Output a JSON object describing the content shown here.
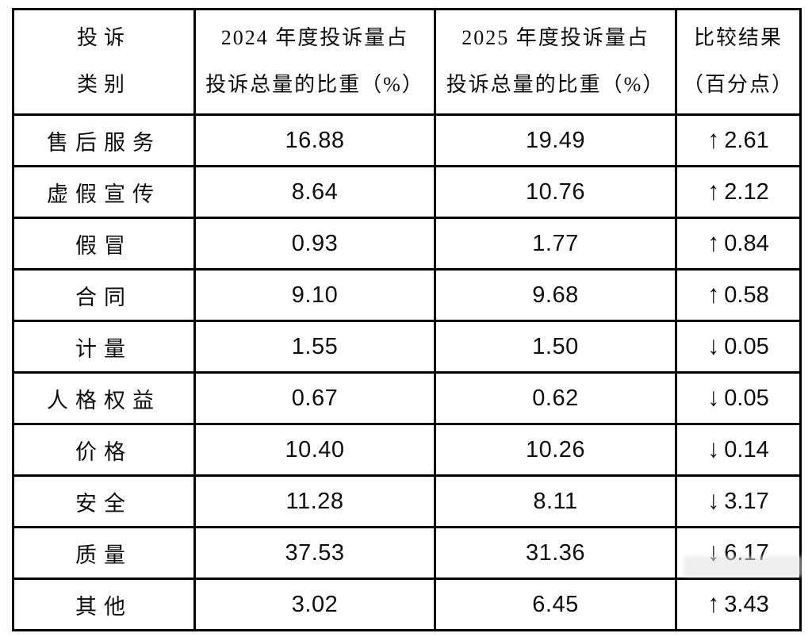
{
  "page": {
    "background": "#ffffff",
    "border_color": "#000000",
    "text_color": "#0d0d0d"
  },
  "table": {
    "header": {
      "category": [
        "投诉",
        "类别"
      ],
      "col2024": [
        "2024 年度投诉量占",
        "投诉总量的比重（%）"
      ],
      "col2025": [
        "2025 年度投诉量占",
        "投诉总量的比重（%）"
      ],
      "comparison": [
        "比较结果",
        "（百分点）"
      ]
    },
    "rows": [
      {
        "category": "售后服务",
        "y2024": "16.88",
        "y2025": "19.49",
        "arrow": "↑",
        "arrow_name": "up-arrow-icon",
        "delta": "2.61"
      },
      {
        "category": "虚假宣传",
        "y2024": "8.64",
        "y2025": "10.76",
        "arrow": "↑",
        "arrow_name": "up-arrow-icon",
        "delta": "2.12"
      },
      {
        "category": "假冒",
        "y2024": "0.93",
        "y2025": "1.77",
        "arrow": "↑",
        "arrow_name": "up-arrow-icon",
        "delta": "0.84"
      },
      {
        "category": "合同",
        "y2024": "9.10",
        "y2025": "9.68",
        "arrow": "↑",
        "arrow_name": "up-arrow-icon",
        "delta": "0.58"
      },
      {
        "category": "计量",
        "y2024": "1.55",
        "y2025": "1.50",
        "arrow": "↓",
        "arrow_name": "down-arrow-icon",
        "delta": "0.05"
      },
      {
        "category": "人格权益",
        "y2024": "0.67",
        "y2025": "0.62",
        "arrow": "↓",
        "arrow_name": "down-arrow-icon",
        "delta": "0.05"
      },
      {
        "category": "价格",
        "y2024": "10.40",
        "y2025": "10.26",
        "arrow": "↓",
        "arrow_name": "down-arrow-icon",
        "delta": "0.14"
      },
      {
        "category": "安全",
        "y2024": "11.28",
        "y2025": "8.11",
        "arrow": "↓",
        "arrow_name": "down-arrow-icon",
        "delta": "3.17"
      },
      {
        "category": "质量",
        "y2024": "37.53",
        "y2025": "31.36",
        "arrow": "↓",
        "arrow_name": "down-arrow-icon",
        "delta": "6.17"
      },
      {
        "category": "其他",
        "y2024": "3.02",
        "y2025": "6.45",
        "arrow": "↑",
        "arrow_name": "up-arrow-icon",
        "delta": "3.43"
      }
    ]
  },
  "chart_data": {
    "type": "table",
    "title": "",
    "columns": [
      "投诉类别",
      "2024年度投诉量占投诉总量的比重（%）",
      "2025年度投诉量占投诉总量的比重（%）",
      "比较结果（百分点）"
    ],
    "rows": [
      [
        "售后服务",
        16.88,
        19.49,
        "↑2.61"
      ],
      [
        "虚假宣传",
        8.64,
        10.76,
        "↑2.12"
      ],
      [
        "假冒",
        0.93,
        1.77,
        "↑0.84"
      ],
      [
        "合同",
        9.1,
        9.68,
        "↑0.58"
      ],
      [
        "计量",
        1.55,
        1.5,
        "↓0.05"
      ],
      [
        "人格权益",
        0.67,
        0.62,
        "↓0.05"
      ],
      [
        "价格",
        10.4,
        10.26,
        "↓0.14"
      ],
      [
        "安全",
        11.28,
        8.11,
        "↓3.17"
      ],
      [
        "质量",
        37.53,
        31.36,
        "↓6.17"
      ],
      [
        "其他",
        3.02,
        6.45,
        "↑3.43"
      ]
    ]
  }
}
